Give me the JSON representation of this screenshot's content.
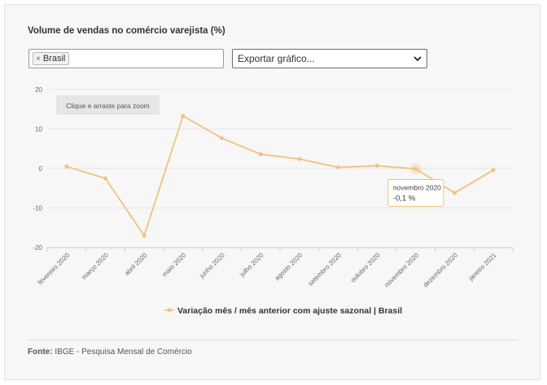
{
  "header": {
    "title": "Volume de vendas no comércio varejista (%)"
  },
  "filter": {
    "tag_remove": "×",
    "tag_label": "Brasil"
  },
  "export": {
    "label": "Exportar gráfico..."
  },
  "zoom_hint": "Clique e arraste para zoom",
  "tooltip": {
    "label": "novembro 2020",
    "value": "-0,1 %"
  },
  "source": {
    "label": "Fonte:",
    "text": "IBGE - Pesquisa Mensal de Comércio"
  },
  "colors": {
    "series": "#f3c07b",
    "grid": "#e6e6e6",
    "axis": "#c9d3e6"
  },
  "chart_data": {
    "type": "line",
    "title": "Volume de vendas no comércio varejista (%)",
    "categories": [
      "fevereiro 2020",
      "março 2020",
      "abril 2020",
      "maio 2020",
      "junho 2020",
      "julho 2020",
      "agosto 2020",
      "setembro 2020",
      "outubro 2020",
      "novembro 2020",
      "dezembro 2020",
      "janeiro 2021"
    ],
    "series": [
      {
        "name": "Variação mês / mês anterior com ajuste sazonal | Brasil",
        "values": [
          0.5,
          -2.5,
          -17.0,
          13.3,
          7.7,
          3.6,
          2.4,
          0.3,
          0.7,
          -0.1,
          -6.2,
          -0.4
        ]
      }
    ],
    "yticks": [
      "20",
      "10",
      "0",
      "-10",
      "-20"
    ],
    "ylim": [
      -20,
      20
    ],
    "xlabel": "",
    "ylabel": "",
    "grid": true,
    "legend": "bottom-center",
    "highlight_index": 9
  }
}
